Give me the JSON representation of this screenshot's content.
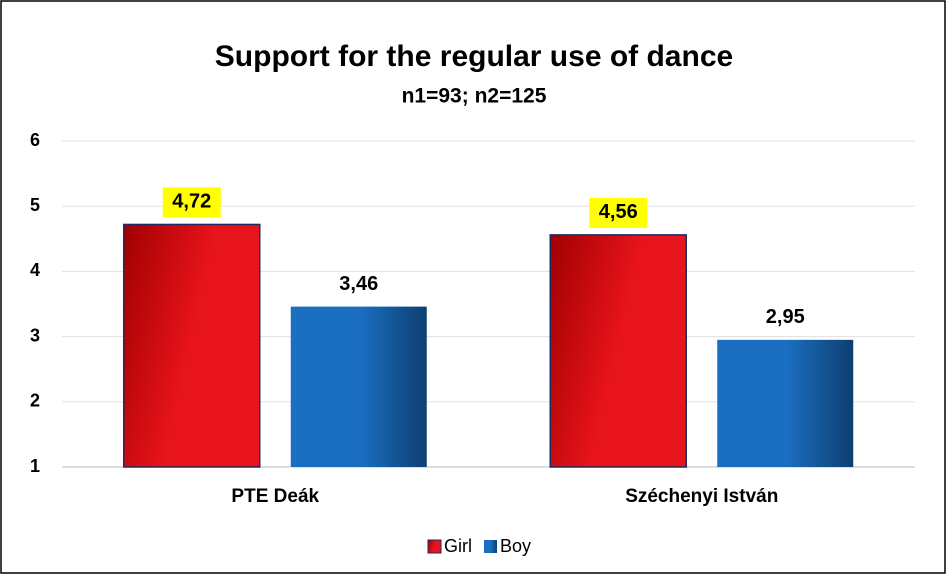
{
  "chart_data": {
    "type": "bar",
    "title": "Support for the regular use of dance",
    "subtitle": "n1=93; n2=125",
    "categories": [
      "PTE Deák",
      "Széchenyi István"
    ],
    "series": [
      {
        "name": "Girl",
        "color": "#e8141b",
        "values": [
          4.72,
          4.56
        ],
        "value_labels": [
          "4,72",
          "4,56"
        ],
        "label_highlight": "#ffff00"
      },
      {
        "name": "Boy",
        "color": "#1b6fc2",
        "values": [
          3.46,
          2.95
        ],
        "value_labels": [
          "3,46",
          "2,95"
        ]
      }
    ],
    "ylim": [
      1,
      6
    ],
    "yticks": [
      1,
      2,
      3,
      4,
      5,
      6
    ],
    "grid": true,
    "legend": "bottom"
  }
}
